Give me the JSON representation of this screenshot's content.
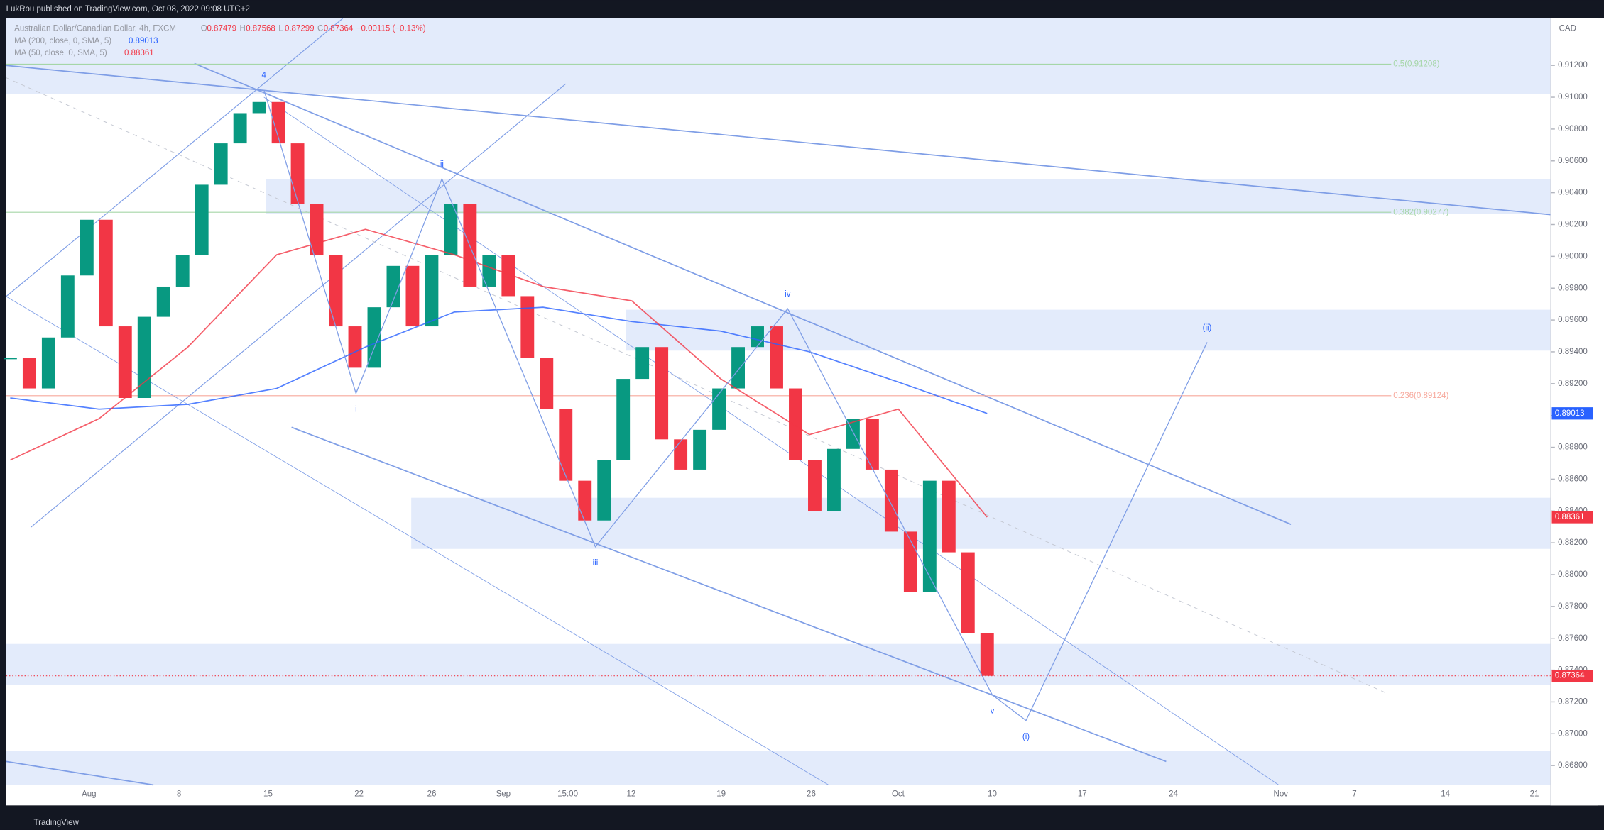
{
  "header": {
    "title": "LukRou published on TradingView.com, Oct 08, 2022 09:08 UTC+2"
  },
  "chart_data": {
    "type": "candlestick",
    "symbol": "Australian Dollar/Canadian Dollar, 4h, FXCM",
    "ohlc": [
      {
        "label": "O",
        "value": 0.87479
      },
      {
        "label": "H",
        "value": 0.87568
      },
      {
        "label": "L",
        "value": 0.87299
      },
      {
        "label": "C",
        "value": 0.87364
      }
    ],
    "change": "−0.00115 (−0.13%)",
    "currency": "CAD",
    "closes": [
      0.8936,
      0.8917,
      0.8949,
      0.8988,
      0.9023,
      0.8956,
      0.8911,
      0.8962,
      0.8981,
      0.9001,
      0.9045,
      0.9071,
      0.909,
      0.9097,
      0.9071,
      0.9033,
      0.9001,
      0.8956,
      0.893,
      0.8968,
      0.8994,
      0.8956,
      0.9001,
      0.9033,
      0.8981,
      0.9001,
      0.8975,
      0.8936,
      0.8904,
      0.8859,
      0.8834,
      0.8872,
      0.8923,
      0.8943,
      0.8885,
      0.8866,
      0.8891,
      0.8917,
      0.8943,
      0.8956,
      0.8917,
      0.8872,
      0.884,
      0.8879,
      0.8898,
      0.8866,
      0.8827,
      0.8789,
      0.8859,
      0.8814,
      0.8763,
      0.87364
    ],
    "up_color": "#089981",
    "down_color": "#f23645",
    "series": [
      {
        "name": "MA (200, close, 0, SMA, 5)",
        "last": 0.89013,
        "last_label": "0.89013",
        "color": "#2962ff",
        "values": [
          0.8911,
          0.8904,
          0.8907,
          0.8917,
          0.8943,
          0.8965,
          0.8968,
          0.8959,
          0.8953,
          0.894,
          0.8921,
          0.89013
        ]
      },
      {
        "name": "MA (50, close, 0, SMA, 5)",
        "last": 0.88361,
        "last_label": "0.88361",
        "color": "#f23645",
        "values": [
          0.8872,
          0.8898,
          0.8943,
          0.9001,
          0.9017,
          0.9001,
          0.8981,
          0.8972,
          0.8923,
          0.8888,
          0.8904,
          0.88361
        ]
      }
    ],
    "price_tags": [
      {
        "value": 0.89013,
        "label": "0.89013",
        "color": "#2962ff"
      },
      {
        "value": 0.88361,
        "label": "0.88361",
        "color": "#f23645"
      },
      {
        "value": 0.87364,
        "label": "0.87364",
        "color": "#f23645"
      }
    ],
    "fib_levels": [
      {
        "value": 0.91208,
        "label": "0.5(0.91208)",
        "color": "#a5d6a7"
      },
      {
        "value": 0.90277,
        "label": "0.382(0.90277)",
        "color": "#a5d6a7"
      },
      {
        "value": 0.89124,
        "label": "0.236(0.89124)",
        "color": "#f7a89c"
      }
    ],
    "waves": [
      {
        "label": "4",
        "value": 0.91046
      },
      {
        "label": "i",
        "value": 0.89139
      },
      {
        "label": "ii",
        "value": 0.90487
      },
      {
        "label": "iii",
        "value": 0.88175
      },
      {
        "label": "iv",
        "value": 0.89671
      },
      {
        "label": "v",
        "value": 0.87244
      },
      {
        "label": "(i)",
        "value": 0.87083
      },
      {
        "label": "(ii)",
        "value": 0.8946
      }
    ],
    "x_labels": [
      "Aug",
      "8",
      "15",
      "22",
      "26",
      "Sep",
      "15:00",
      "12",
      "19",
      "26",
      "Oct",
      "10",
      "17",
      "24",
      "Nov",
      "7",
      "14",
      "21"
    ],
    "ylim": [
      0.86678,
      0.91495
    ],
    "yticks": [
      {
        "value": 0.868,
        "label": "0.86800"
      },
      {
        "value": 0.87,
        "label": "0.87000"
      },
      {
        "value": 0.872,
        "label": "0.87200"
      },
      {
        "value": 0.874,
        "label": "0.87400"
      },
      {
        "value": 0.876,
        "label": "0.87600"
      },
      {
        "value": 0.878,
        "label": "0.87800"
      },
      {
        "value": 0.88,
        "label": "0.88000"
      },
      {
        "value": 0.882,
        "label": "0.88200"
      },
      {
        "value": 0.884,
        "label": "0.88400"
      },
      {
        "value": 0.886,
        "label": "0.88600"
      },
      {
        "value": 0.888,
        "label": "0.88800"
      },
      {
        "value": 0.89,
        "label": "0.89000"
      },
      {
        "value": 0.892,
        "label": "0.89200"
      },
      {
        "value": 0.894,
        "label": "0.89400"
      },
      {
        "value": 0.896,
        "label": "0.89600"
      },
      {
        "value": 0.898,
        "label": "0.89800"
      },
      {
        "value": 0.9,
        "label": "0.90000"
      },
      {
        "value": 0.902,
        "label": "0.90200"
      },
      {
        "value": 0.904,
        "label": "0.90400"
      },
      {
        "value": 0.906,
        "label": "0.90600"
      },
      {
        "value": 0.908,
        "label": "0.90800"
      },
      {
        "value": 0.91,
        "label": "0.91000"
      },
      {
        "value": 0.912,
        "label": "0.91200"
      }
    ]
  },
  "footer": {
    "brand": "TradingView"
  }
}
